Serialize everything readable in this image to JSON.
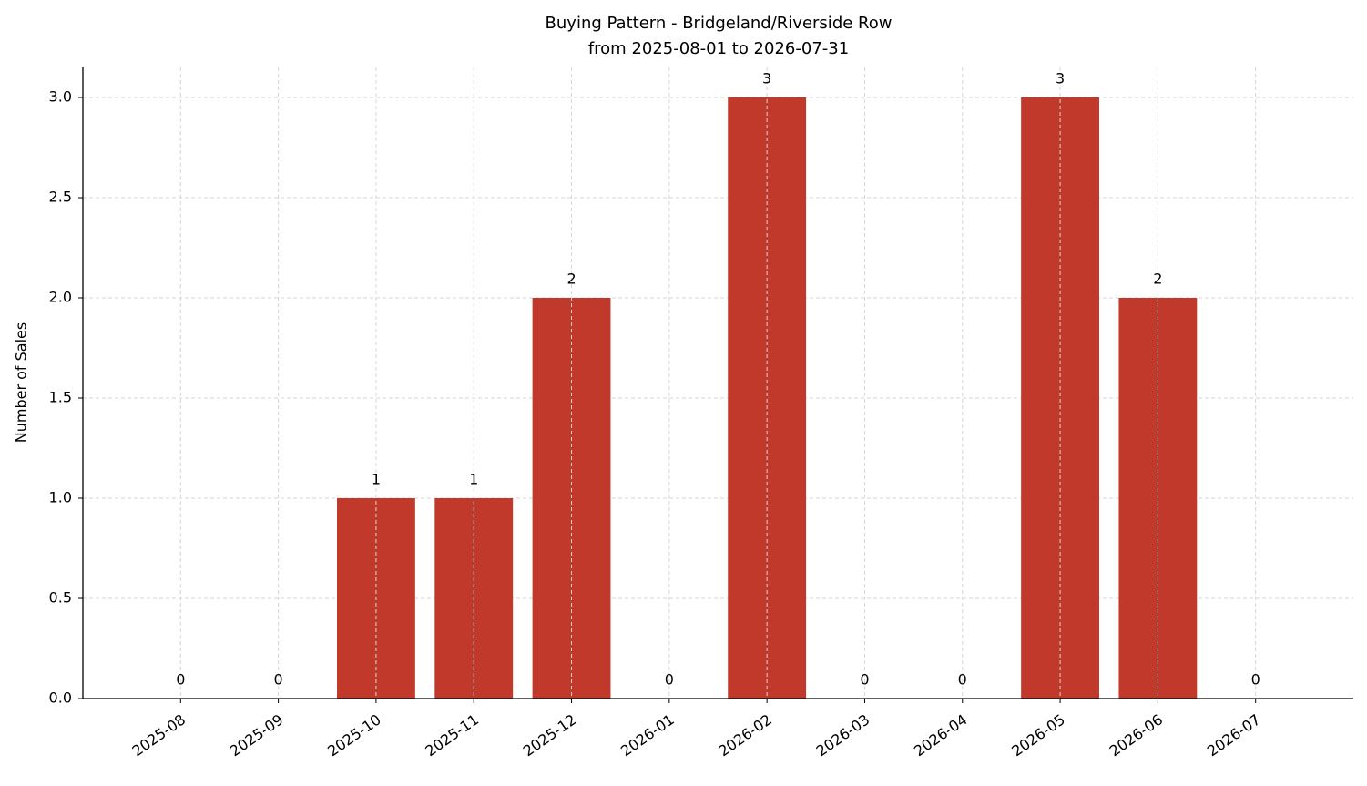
{
  "chart_data": {
    "type": "bar",
    "title": "Buying Pattern - Bridgeland/Riverside Row",
    "subtitle": "from 2025-08-01 to 2026-07-31",
    "y_label": "Number of Sales",
    "categories": [
      "2025-08",
      "2025-09",
      "2025-10",
      "2025-11",
      "2025-12",
      "2026-01",
      "2026-02",
      "2026-03",
      "2026-04",
      "2026-05",
      "2026-06",
      "2026-07"
    ],
    "values": [
      0,
      0,
      1,
      1,
      2,
      0,
      3,
      0,
      0,
      3,
      2,
      0
    ],
    "color": "#c0392b",
    "ylim": [
      0,
      3.15
    ],
    "yticks": [
      {
        "value": 0,
        "label": "0.0"
      },
      0.5,
      {
        "value": 1,
        "label": "1.0"
      },
      1.5,
      {
        "value": 2,
        "label": "2.0"
      },
      2.5,
      {
        "value": 3,
        "label": "3.0"
      }
    ],
    "grid": true
  }
}
